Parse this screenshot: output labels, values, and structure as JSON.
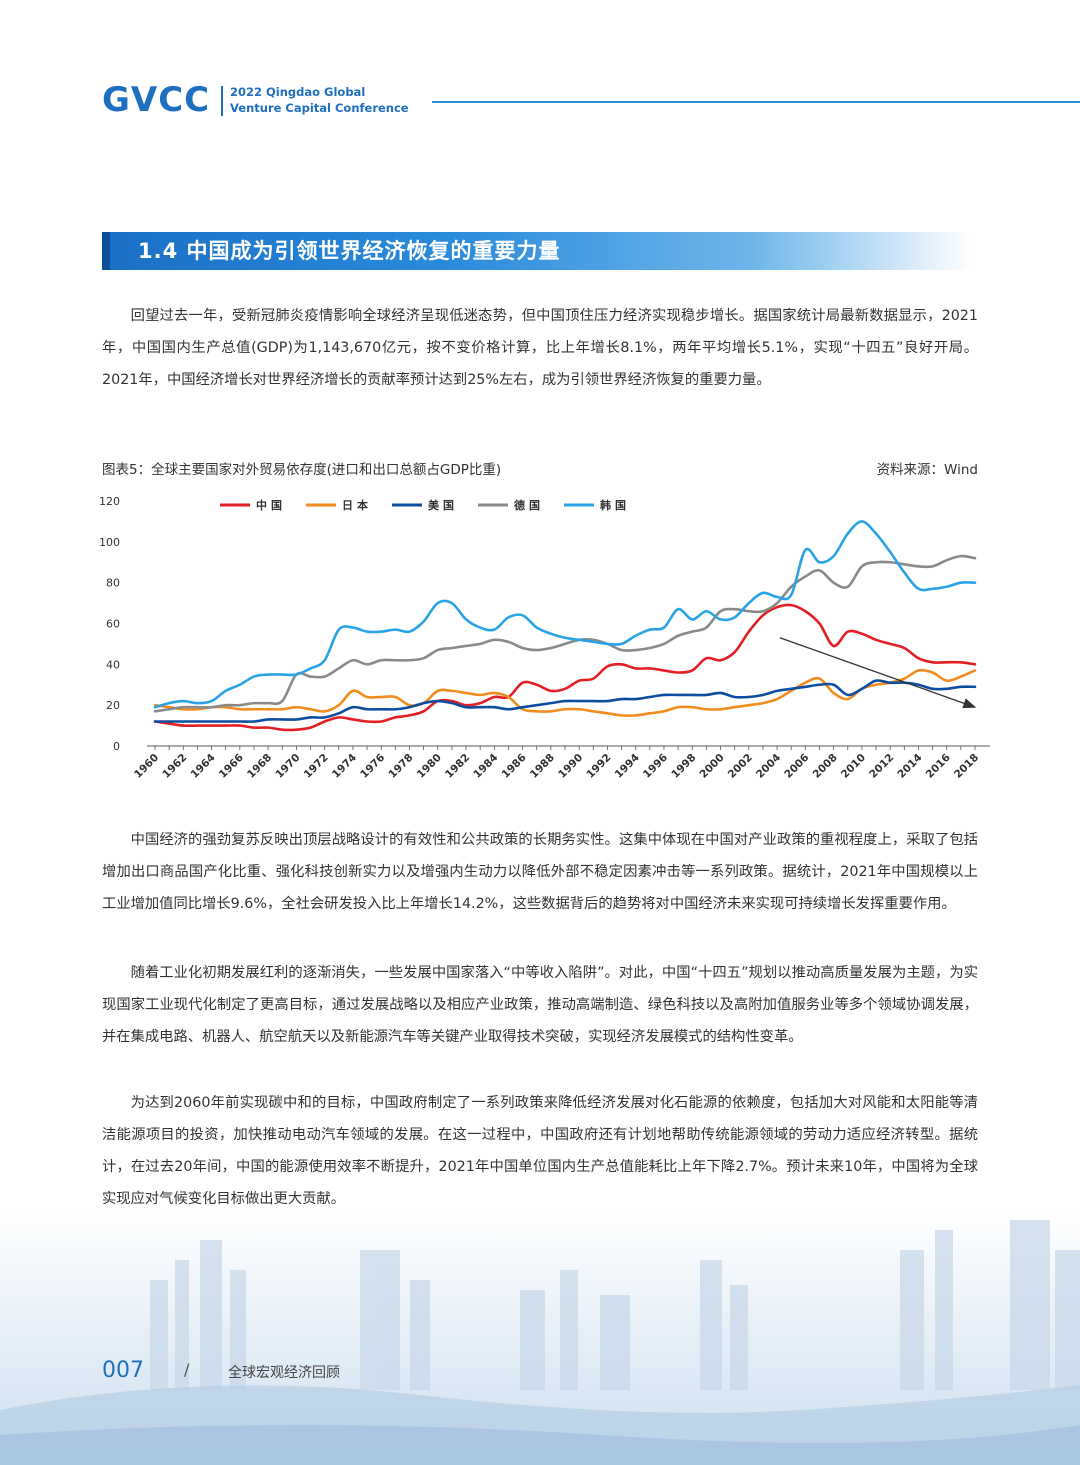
{
  "header": {
    "logo": "GVCC",
    "conf_line1": "2022 Qingdao Global",
    "conf_line2": "Venture Capital Conference"
  },
  "section": {
    "title": "1.4 中国成为引领世界经济恢复的重要力量"
  },
  "paragraphs": {
    "p1": "回望过去一年，受新冠肺炎疫情影响全球经济呈现低迷态势，但中国顶住压力经济实现稳步增长。据国家统计局最新数据显示，2021年，中国国内生产总值(GDP)为1,143,670亿元，按不变价格计算，比上年增长8.1%，两年平均增长5.1%，实现“十四五”良好开局。2021年，中国经济增长对世界经济增长的贡献率预计达到25%左右，成为引领世界经济恢复的重要力量。",
    "p2": "中国经济的强劲复苏反映出顶层战略设计的有效性和公共政策的长期务实性。这集中体现在中国对产业政策的重视程度上，采取了包括增加出口商品国产化比重、强化科技创新实力以及增强内生动力以降低外部不稳定因素冲击等一系列政策。据统计，2021年中国规模以上工业增加值同比增长9.6%，全社会研发投入比上年增长14.2%，这些数据背后的趋势将对中国经济未来实现可持续增长发挥重要作用。",
    "p3": "随着工业化初期发展红利的逐渐消失，一些发展中国家落入“中等收入陷阱”。对此，中国“十四五”规划以推动高质量发展为主题，为实现国家工业现代化制定了更高目标，通过发展战略以及相应产业政策，推动高端制造、绿色科技以及高附加值服务业等多个领域协调发展，并在集成电路、机器人、航空航天以及新能源汽车等关键产业取得技术突破，实现经济发展模式的结构性变革。",
    "p4": "为达到2060年前实现碳中和的目标，中国政府制定了一系列政策来降低经济发展对化石能源的依赖度，包括加大对风能和太阳能等清洁能源项目的投资，加快推动电动汽车领域的发展。在这一过程中，中国政府还有计划地帮助传统能源领域的劳动力适应经济转型。据统计，在过去20年间，中国的能源使用效率不断提升，2021年中国单位国内生产总值能耗比上年下降2.7%。预计未来10年，中国将为全球实现应对气候变化目标做出更大贡献。"
  },
  "chart_caption": "图表5：全球主要国家对外贸易依存度(进口和出口总额占GDP比重)",
  "chart_source": "资料来源：Wind",
  "chart_data": {
    "type": "line",
    "title": "全球主要国家对外贸易依存度(进口和出口总额占GDP比重)",
    "ylim": [
      0,
      120
    ],
    "yticks": [
      "0",
      "20",
      "40",
      "60",
      "80",
      "100",
      "120"
    ],
    "x": [
      1960,
      1961,
      1962,
      1963,
      1964,
      1965,
      1966,
      1967,
      1968,
      1969,
      1970,
      1971,
      1972,
      1973,
      1974,
      1975,
      1976,
      1977,
      1978,
      1979,
      1980,
      1981,
      1982,
      1983,
      1984,
      1985,
      1986,
      1987,
      1988,
      1989,
      1990,
      1991,
      1992,
      1993,
      1994,
      1995,
      1996,
      1997,
      1998,
      1999,
      2000,
      2001,
      2002,
      2003,
      2004,
      2005,
      2006,
      2007,
      2008,
      2009,
      2010,
      2011,
      2012,
      2013,
      2014,
      2015,
      2016,
      2017,
      2018
    ],
    "xtick_labels": [
      "1960",
      "1962",
      "1964",
      "1966",
      "1968",
      "1970",
      "1972",
      "1974",
      "1976",
      "1978",
      "1980",
      "1982",
      "1984",
      "1986",
      "1988",
      "1990",
      "1992",
      "1994",
      "1996",
      "1998",
      "2000",
      "2002",
      "2004",
      "2006",
      "2008",
      "2010",
      "2012",
      "2014",
      "2016",
      "2018"
    ],
    "series": [
      {
        "name": "中国",
        "color": "#e31e24",
        "values": [
          12,
          11,
          10,
          10,
          10,
          10,
          10,
          9,
          9,
          8,
          8,
          9,
          12,
          14,
          13,
          12,
          12,
          14,
          15,
          17,
          22,
          22,
          20,
          21,
          24,
          24,
          31,
          30,
          27,
          28,
          32,
          33,
          39,
          40,
          38,
          38,
          37,
          36,
          37,
          43,
          42,
          46,
          56,
          64,
          68,
          69,
          66,
          60,
          49,
          56,
          55,
          52,
          50,
          48,
          43,
          41,
          41,
          41,
          40
        ]
      },
      {
        "name": "日本",
        "color": "#f28c1f",
        "values": [
          20,
          19,
          18,
          18,
          19,
          19,
          18,
          18,
          18,
          18,
          19,
          18,
          17,
          20,
          27,
          24,
          24,
          24,
          20,
          21,
          27,
          27,
          26,
          25,
          26,
          24,
          18,
          17,
          17,
          18,
          18,
          17,
          16,
          15,
          15,
          16,
          17,
          19,
          19,
          18,
          18,
          19,
          20,
          21,
          23,
          27,
          31,
          33,
          26,
          23,
          28,
          30,
          31,
          33,
          37,
          36,
          32,
          34,
          37
        ]
      },
      {
        "name": "美国",
        "color": "#0b4d9f",
        "values": [
          12,
          12,
          12,
          12,
          12,
          12,
          12,
          12,
          13,
          13,
          13,
          14,
          14,
          16,
          19,
          18,
          18,
          18,
          19,
          21,
          22,
          21,
          19,
          19,
          19,
          18,
          19,
          20,
          21,
          22,
          22,
          22,
          22,
          23,
          23,
          24,
          25,
          25,
          25,
          25,
          26,
          24,
          24,
          25,
          27,
          28,
          29,
          30,
          30,
          25,
          28,
          32,
          31,
          31,
          30,
          28,
          28,
          29,
          29
        ]
      },
      {
        "name": "德国",
        "color": "#8a8a8a",
        "values": [
          17,
          18,
          19,
          19,
          19,
          20,
          20,
          21,
          21,
          22,
          35,
          34,
          34,
          38,
          42,
          40,
          42,
          42,
          42,
          43,
          47,
          48,
          49,
          50,
          52,
          51,
          48,
          47,
          48,
          50,
          52,
          52,
          50,
          47,
          47,
          48,
          50,
          54,
          56,
          58,
          66,
          67,
          66,
          66,
          70,
          78,
          83,
          86,
          80,
          78,
          88,
          90,
          90,
          89,
          88,
          88,
          91,
          93,
          92
        ]
      },
      {
        "name": "韩国",
        "color": "#29a3e6",
        "values": [
          19,
          21,
          22,
          21,
          22,
          27,
          30,
          34,
          35,
          35,
          35,
          38,
          42,
          57,
          58,
          56,
          56,
          57,
          56,
          61,
          70,
          70,
          62,
          58,
          57,
          63,
          64,
          58,
          55,
          53,
          52,
          51,
          50,
          50,
          54,
          57,
          58,
          67,
          62,
          66,
          62,
          63,
          70,
          75,
          73,
          74,
          96,
          90,
          93,
          104,
          110,
          104,
          95,
          85,
          77,
          77,
          78,
          80,
          80
        ]
      }
    ],
    "legend": [
      "中国",
      "日本",
      "美国",
      "德国",
      "韩国"
    ],
    "legend_position": "top",
    "annotation": "downward arrow from 2004 to 2018 indicating declining trend",
    "grid": false
  },
  "footer": {
    "page_number": "007",
    "slash": "/",
    "section_name": "全球宏观经济回顾"
  }
}
